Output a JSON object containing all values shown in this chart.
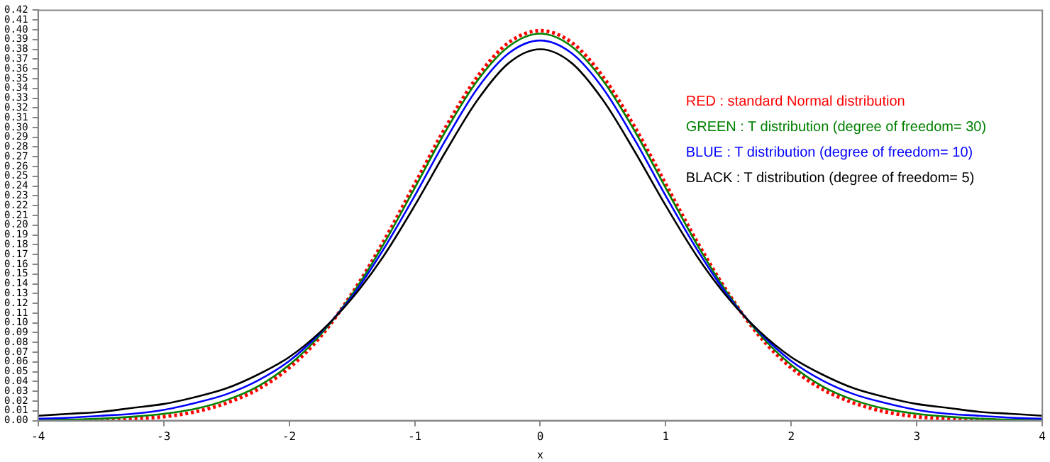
{
  "chart_data": {
    "type": "line",
    "xlabel": "x",
    "x": [
      -4,
      -3.75,
      -3.5,
      -3.25,
      -3,
      -2.75,
      -2.5,
      -2.25,
      -2,
      -1.75,
      -1.5,
      -1.25,
      -1,
      -0.75,
      -0.5,
      -0.25,
      0,
      0.25,
      0.5,
      0.75,
      1,
      1.25,
      1.5,
      1.75,
      2,
      2.25,
      2.5,
      2.75,
      3,
      3.25,
      3.5,
      3.75,
      4
    ],
    "series": [
      {
        "name": "RED : standard Normal distribution",
        "color": "#ff0000",
        "line_style": "dotted",
        "values": [
          0.0,
          0.0,
          0.001,
          0.002,
          0.004,
          0.009,
          0.018,
          0.032,
          0.054,
          0.086,
          0.13,
          0.183,
          0.242,
          0.301,
          0.352,
          0.387,
          0.399,
          0.387,
          0.352,
          0.301,
          0.242,
          0.183,
          0.13,
          0.086,
          0.054,
          0.032,
          0.018,
          0.009,
          0.004,
          0.002,
          0.001,
          0.0,
          0.0
        ]
      },
      {
        "name": "GREEN : T distribution (degree of freedom= 30)",
        "color": "#008000",
        "line_style": "solid",
        "values": [
          0.001,
          0.001,
          0.002,
          0.004,
          0.007,
          0.012,
          0.021,
          0.035,
          0.057,
          0.088,
          0.129,
          0.18,
          0.238,
          0.297,
          0.348,
          0.383,
          0.396,
          0.383,
          0.348,
          0.297,
          0.238,
          0.18,
          0.129,
          0.088,
          0.057,
          0.035,
          0.021,
          0.012,
          0.007,
          0.004,
          0.002,
          0.001,
          0.001
        ]
      },
      {
        "name": "BLUE : T distribution (degree of freedom= 10)",
        "color": "#0000ff",
        "line_style": "solid",
        "values": [
          0.002,
          0.003,
          0.005,
          0.007,
          0.011,
          0.018,
          0.027,
          0.041,
          0.061,
          0.09,
          0.127,
          0.175,
          0.23,
          0.288,
          0.34,
          0.376,
          0.389,
          0.376,
          0.34,
          0.288,
          0.23,
          0.175,
          0.127,
          0.09,
          0.061,
          0.041,
          0.027,
          0.018,
          0.011,
          0.007,
          0.005,
          0.003,
          0.002
        ]
      },
      {
        "name": "BLACK : T distribution (degree of freedom= 5)",
        "color": "#000000",
        "line_style": "solid",
        "values": [
          0.005,
          0.007,
          0.009,
          0.013,
          0.017,
          0.024,
          0.033,
          0.047,
          0.065,
          0.091,
          0.125,
          0.168,
          0.22,
          0.276,
          0.328,
          0.366,
          0.38,
          0.366,
          0.328,
          0.276,
          0.22,
          0.168,
          0.125,
          0.091,
          0.065,
          0.047,
          0.033,
          0.024,
          0.017,
          0.013,
          0.009,
          0.007,
          0.005
        ]
      }
    ],
    "xlim": [
      -4,
      4
    ],
    "xticks": [
      -4,
      -3,
      -2,
      -1,
      0,
      1,
      2,
      3,
      4
    ],
    "ylim": [
      0,
      0.42
    ],
    "yticks": [
      {
        "value": 0,
        "label": "0.00"
      },
      {
        "value": 0.01,
        "label": "0.01"
      },
      {
        "value": 0.02,
        "label": "0.02"
      },
      {
        "value": 0.03,
        "label": "0.03"
      },
      {
        "value": 0.04,
        "label": "0.04"
      },
      {
        "value": 0.05,
        "label": "0.05"
      },
      {
        "value": 0.06,
        "label": "0.06"
      },
      {
        "value": 0.07,
        "label": "0.07"
      },
      {
        "value": 0.08,
        "label": "0.08"
      },
      {
        "value": 0.09,
        "label": "0.09"
      },
      {
        "value": 0.1,
        "label": "0.10"
      },
      {
        "value": 0.11,
        "label": "0.11"
      },
      {
        "value": 0.12,
        "label": "0.12"
      },
      {
        "value": 0.13,
        "label": "0.13"
      },
      {
        "value": 0.14,
        "label": "0.14"
      },
      {
        "value": 0.15,
        "label": "0.15"
      },
      {
        "value": 0.16,
        "label": "0.16"
      },
      {
        "value": 0.17,
        "label": "0.17"
      },
      {
        "value": 0.18,
        "label": "0.18"
      },
      {
        "value": 0.19,
        "label": "0.19"
      },
      {
        "value": 0.2,
        "label": "0.20"
      },
      {
        "value": 0.21,
        "label": "0.21"
      },
      {
        "value": 0.22,
        "label": "0.22"
      },
      {
        "value": 0.23,
        "label": "0.23"
      },
      {
        "value": 0.24,
        "label": "0.24"
      },
      {
        "value": 0.25,
        "label": "0.25"
      },
      {
        "value": 0.26,
        "label": "0.26"
      },
      {
        "value": 0.27,
        "label": "0.27"
      },
      {
        "value": 0.28,
        "label": "0.28"
      },
      {
        "value": 0.29,
        "label": "0.29"
      },
      {
        "value": 0.3,
        "label": "0.30"
      },
      {
        "value": 0.31,
        "label": "0.31"
      },
      {
        "value": 0.32,
        "label": "0.32"
      },
      {
        "value": 0.33,
        "label": "0.33"
      },
      {
        "value": 0.34,
        "label": "0.34"
      },
      {
        "value": 0.35,
        "label": "0.35"
      },
      {
        "value": 0.36,
        "label": "0.36"
      },
      {
        "value": 0.37,
        "label": "0.37"
      },
      {
        "value": 0.38,
        "label": "0.38"
      },
      {
        "value": 0.39,
        "label": "0.39"
      },
      {
        "value": 0.4,
        "label": "0.40"
      },
      {
        "value": 0.41,
        "label": "0.41"
      },
      {
        "value": 0.42,
        "label": "0.42"
      }
    ],
    "grid": false,
    "legend": "top right",
    "marker": "none"
  }
}
